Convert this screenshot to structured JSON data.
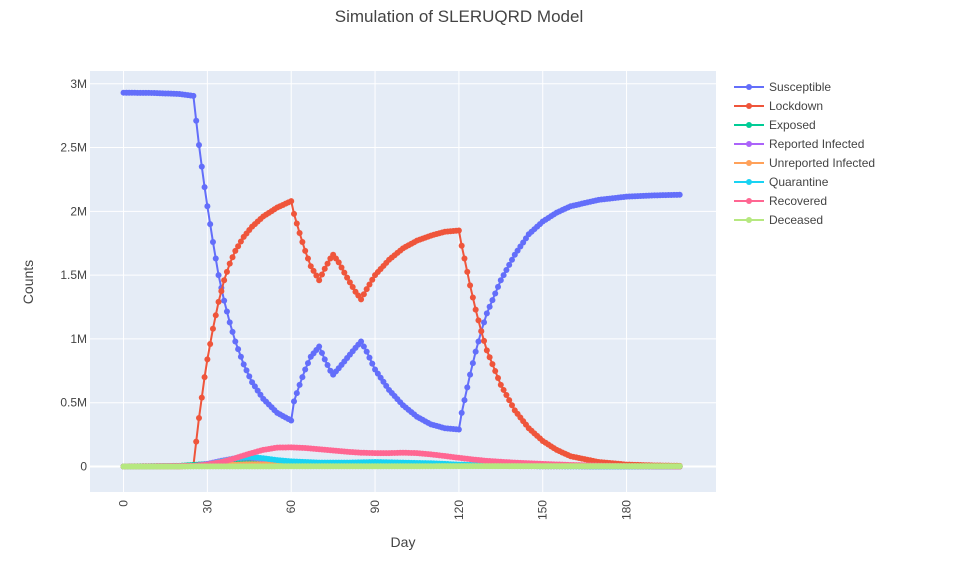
{
  "chart_data": {
    "type": "line",
    "title": "Simulation of SLERUQRD Model",
    "xlabel": "Day",
    "ylabel": "Counts",
    "xlim": [
      -12,
      212
    ],
    "ylim": [
      -200000,
      3100000
    ],
    "x_ticks": [
      0,
      30,
      60,
      90,
      120,
      150,
      180
    ],
    "x_tick_labels": [
      "0",
      "30",
      "60",
      "90",
      "120",
      "150",
      "180"
    ],
    "y_ticks": [
      0,
      500000,
      1000000,
      1500000,
      2000000,
      2500000,
      3000000
    ],
    "y_tick_labels": [
      "0",
      "0.5M",
      "1M",
      "1.5M",
      "2M",
      "2.5M",
      "3M"
    ],
    "grid": true,
    "legend_position": "top-right",
    "background": "#e5ecf6",
    "series": [
      {
        "name": "Susceptible",
        "color": "#636efa",
        "x": [
          0,
          10,
          20,
          25,
          26,
          27,
          28,
          29,
          30,
          32,
          34,
          36,
          38,
          40,
          43,
          46,
          50,
          55,
          60,
          61,
          63,
          65,
          67,
          70,
          72,
          74,
          75,
          77,
          80,
          83,
          85,
          87,
          90,
          95,
          100,
          105,
          110,
          115,
          120,
          121,
          122,
          124,
          126,
          128,
          130,
          135,
          140,
          145,
          150,
          155,
          160,
          170,
          180,
          190,
          199
        ],
        "y": [
          2930000,
          2928000,
          2920000,
          2905000,
          2710000,
          2520000,
          2350000,
          2190000,
          2040000,
          1760000,
          1500000,
          1300000,
          1130000,
          980000,
          800000,
          660000,
          530000,
          420000,
          360000,
          510000,
          640000,
          760000,
          860000,
          940000,
          840000,
          750000,
          720000,
          770000,
          850000,
          930000,
          980000,
          900000,
          760000,
          600000,
          480000,
          390000,
          330000,
          300000,
          290000,
          420000,
          520000,
          720000,
          900000,
          1060000,
          1200000,
          1460000,
          1660000,
          1820000,
          1920000,
          1990000,
          2040000,
          2090000,
          2115000,
          2125000,
          2130000
        ]
      },
      {
        "name": "Lockdown",
        "color": "#ef553b",
        "x": [
          0,
          10,
          20,
          25,
          26,
          27,
          28,
          29,
          30,
          32,
          34,
          36,
          38,
          40,
          43,
          46,
          50,
          55,
          60,
          61,
          63,
          65,
          67,
          70,
          72,
          74,
          75,
          77,
          80,
          83,
          85,
          87,
          90,
          95,
          100,
          105,
          110,
          115,
          120,
          121,
          122,
          124,
          126,
          128,
          130,
          135,
          140,
          145,
          150,
          155,
          160,
          170,
          180,
          190,
          199
        ],
        "y": [
          0,
          0,
          0,
          5000,
          195000,
          380000,
          540000,
          700000,
          840000,
          1080000,
          1290000,
          1460000,
          1590000,
          1690000,
          1800000,
          1880000,
          1960000,
          2030000,
          2080000,
          1980000,
          1830000,
          1690000,
          1570000,
          1460000,
          1550000,
          1630000,
          1660000,
          1600000,
          1480000,
          1370000,
          1310000,
          1390000,
          1500000,
          1620000,
          1710000,
          1770000,
          1810000,
          1840000,
          1850000,
          1730000,
          1630000,
          1420000,
          1230000,
          1060000,
          910000,
          640000,
          440000,
          300000,
          200000,
          130000,
          80000,
          35000,
          15000,
          8000,
          5000
        ]
      },
      {
        "name": "Exposed",
        "color": "#00cc96",
        "x": [
          0,
          20,
          30,
          40,
          50,
          60,
          70,
          80,
          90,
          100,
          110,
          120,
          130,
          150,
          170,
          199
        ],
        "y": [
          0,
          5000,
          20000,
          45000,
          50000,
          35000,
          25000,
          20000,
          20000,
          18000,
          12000,
          8000,
          5000,
          2000,
          1000,
          0
        ]
      },
      {
        "name": "Reported Infected",
        "color": "#ab63fa",
        "x": [
          0,
          25,
          30,
          35,
          40,
          45,
          50,
          55,
          60,
          70,
          80,
          90,
          100,
          110,
          120,
          130,
          150,
          170,
          199
        ],
        "y": [
          0,
          5000,
          20000,
          45000,
          65000,
          70000,
          60000,
          45000,
          30000,
          20000,
          18000,
          18000,
          16000,
          12000,
          8000,
          5000,
          2000,
          1000,
          0
        ]
      },
      {
        "name": "Unreported Infected",
        "color": "#ffa15a",
        "x": [
          0,
          25,
          35,
          45,
          55,
          65,
          80,
          100,
          120,
          140,
          170,
          199
        ],
        "y": [
          0,
          3000,
          10000,
          18000,
          15000,
          10000,
          8000,
          7000,
          5000,
          3000,
          1000,
          0
        ]
      },
      {
        "name": "Quarantine",
        "color": "#19d3f3",
        "x": [
          0,
          25,
          30,
          35,
          40,
          45,
          50,
          55,
          60,
          70,
          80,
          90,
          100,
          110,
          120,
          130,
          150,
          170,
          199
        ],
        "y": [
          0,
          3000,
          15000,
          40000,
          65000,
          75000,
          65000,
          50000,
          40000,
          30000,
          30000,
          35000,
          30000,
          25000,
          15000,
          8000,
          3000,
          1000,
          0
        ]
      },
      {
        "name": "Recovered",
        "color": "#ff6692",
        "x": [
          0,
          25,
          30,
          35,
          40,
          45,
          50,
          55,
          60,
          65,
          70,
          75,
          80,
          85,
          90,
          95,
          100,
          105,
          110,
          115,
          120,
          125,
          130,
          140,
          150,
          160,
          170,
          180,
          190,
          199
        ],
        "y": [
          0,
          5000,
          15000,
          35000,
          65000,
          100000,
          130000,
          148000,
          150000,
          145000,
          135000,
          125000,
          115000,
          108000,
          105000,
          105000,
          108000,
          105000,
          95000,
          82000,
          68000,
          55000,
          44000,
          30000,
          20000,
          12000,
          7000,
          3000,
          1000,
          0
        ]
      },
      {
        "name": "Deceased",
        "color": "#b6e880",
        "x": [
          0,
          30,
          60,
          90,
          120,
          150,
          180,
          199
        ],
        "y": [
          0,
          500,
          1500,
          2000,
          2500,
          2500,
          2500,
          2500
        ]
      }
    ]
  }
}
